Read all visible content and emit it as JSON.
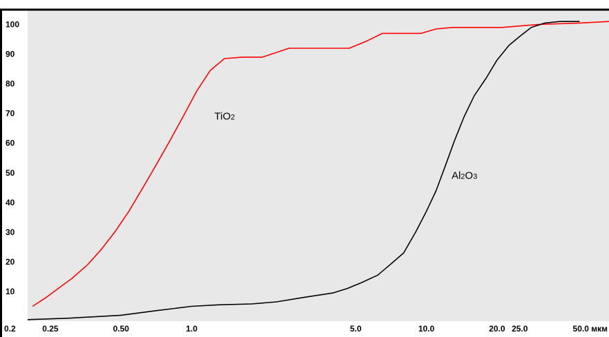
{
  "chart_data": {
    "type": "line",
    "x_scale": "log",
    "xlim": [
      0.2,
      60
    ],
    "ylim": [
      0,
      105
    ],
    "grid": false,
    "background": "#e8e8e8",
    "x_ticks": [
      {
        "value": 0.2,
        "label": "0.2"
      },
      {
        "value": 0.25,
        "label": "0.25"
      },
      {
        "value": 0.5,
        "label": "0.50"
      },
      {
        "value": 1.0,
        "label": "1.0"
      },
      {
        "value": 5.0,
        "label": "5.0"
      },
      {
        "value": 10.0,
        "label": "10.0"
      },
      {
        "value": 20.0,
        "label": "20.0"
      },
      {
        "value": 25.0,
        "label": "25.0"
      },
      {
        "value": 50.0,
        "label": "50.0 мкм"
      }
    ],
    "y_ticks": [
      {
        "value": 10,
        "label": "10"
      },
      {
        "value": 20,
        "label": "20"
      },
      {
        "value": 30,
        "label": "30"
      },
      {
        "value": 40,
        "label": "40"
      },
      {
        "value": 50,
        "label": "50"
      },
      {
        "value": 60,
        "label": "60"
      },
      {
        "value": 70,
        "label": "70"
      },
      {
        "value": 80,
        "label": "80"
      },
      {
        "value": 90,
        "label": "90"
      },
      {
        "value": 100,
        "label": "100"
      }
    ],
    "series": [
      {
        "name": "TiO2",
        "label_main": "TiO",
        "label_sub": "2",
        "label_x": 1.25,
        "label_y": 68,
        "color": "#ff0000",
        "points": [
          [
            0.21,
            5
          ],
          [
            0.24,
            8
          ],
          [
            0.27,
            11
          ],
          [
            0.31,
            14.5
          ],
          [
            0.36,
            19
          ],
          [
            0.41,
            24
          ],
          [
            0.47,
            30
          ],
          [
            0.54,
            37
          ],
          [
            0.62,
            45
          ],
          [
            0.71,
            53
          ],
          [
            0.81,
            61
          ],
          [
            0.92,
            69
          ],
          [
            1.05,
            77.5
          ],
          [
            1.2,
            84.5
          ],
          [
            1.38,
            88.5
          ],
          [
            1.65,
            89
          ],
          [
            2.0,
            89
          ],
          [
            2.6,
            92
          ],
          [
            3.5,
            92
          ],
          [
            4.7,
            92
          ],
          [
            5.6,
            94.5
          ],
          [
            6.5,
            97
          ],
          [
            8.0,
            97
          ],
          [
            9.5,
            97
          ],
          [
            11,
            98.5
          ],
          [
            13,
            99
          ],
          [
            17,
            99
          ],
          [
            21,
            99
          ],
          [
            30,
            100
          ],
          [
            45,
            100.5
          ],
          [
            60,
            101
          ]
        ]
      },
      {
        "name": "Al2O3",
        "label_main": "Al",
        "label_sub": "2",
        "label_main2": "O",
        "label_sub2": "3",
        "label_x": 12.8,
        "label_y": 48,
        "color": "#000000",
        "points": [
          [
            0.2,
            0.5
          ],
          [
            0.3,
            1
          ],
          [
            0.5,
            2
          ],
          [
            0.7,
            3.5
          ],
          [
            1.0,
            5
          ],
          [
            1.3,
            5.5
          ],
          [
            1.8,
            5.8
          ],
          [
            2.3,
            6.5
          ],
          [
            3.0,
            8
          ],
          [
            4.0,
            9.5
          ],
          [
            4.6,
            11
          ],
          [
            5.3,
            13
          ],
          [
            6.2,
            15.5
          ],
          [
            7.0,
            19
          ],
          [
            8.0,
            23
          ],
          [
            9.0,
            30
          ],
          [
            10,
            37
          ],
          [
            11,
            44
          ],
          [
            12,
            52
          ],
          [
            13.2,
            61
          ],
          [
            14.5,
            69
          ],
          [
            16,
            76
          ],
          [
            18,
            82
          ],
          [
            20,
            88
          ],
          [
            22.5,
            93
          ],
          [
            25,
            96
          ],
          [
            28,
            99
          ],
          [
            32,
            100.5
          ],
          [
            37,
            101
          ],
          [
            45,
            101
          ]
        ]
      }
    ]
  }
}
